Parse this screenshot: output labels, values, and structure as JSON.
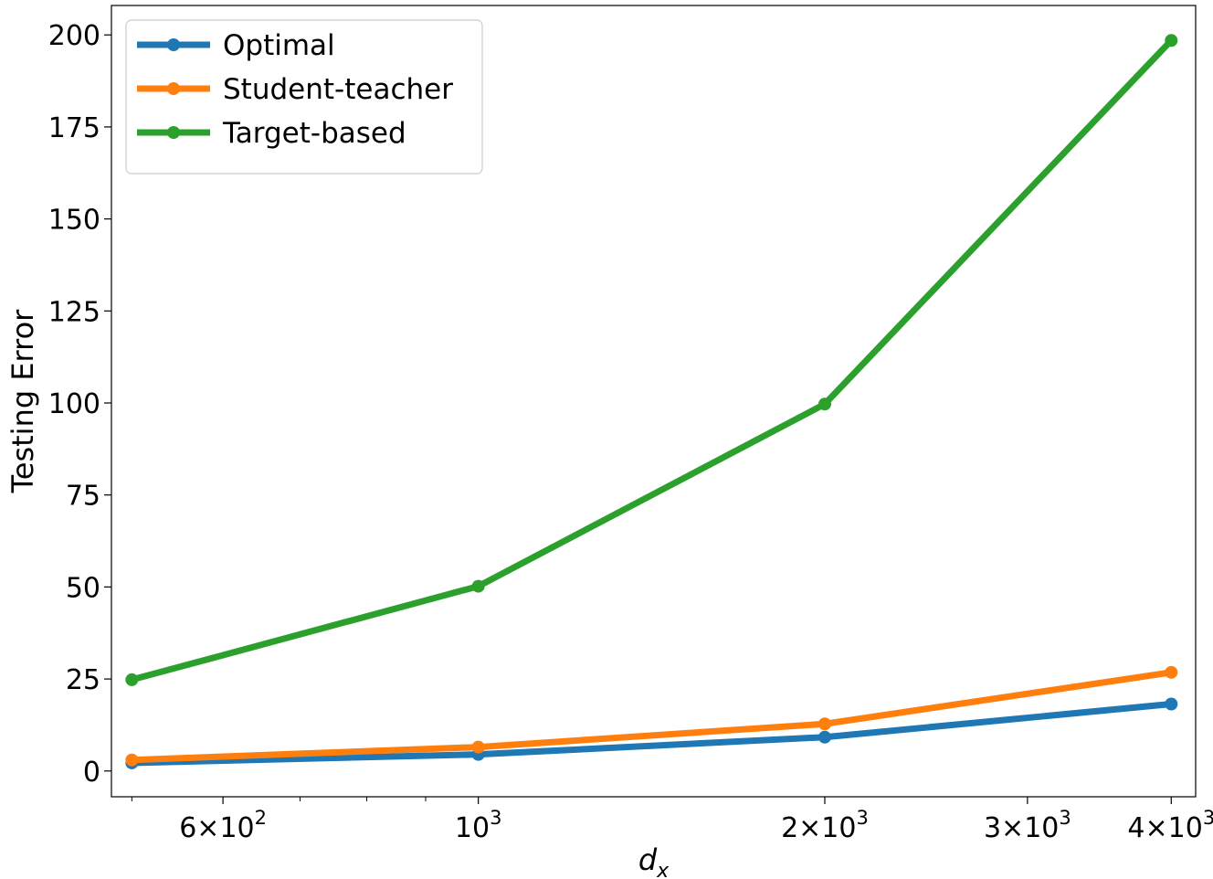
{
  "chart_data": {
    "type": "line",
    "title": "",
    "xlabel_base": "d",
    "xlabel_sub": "x",
    "ylabel": "Testing Error",
    "xscale": "log",
    "xlim": [
      480,
      4200
    ],
    "ylim": [
      -7,
      208
    ],
    "grid": false,
    "legend_position": "top-left",
    "x": [
      500,
      1000,
      2000,
      4000
    ],
    "series": [
      {
        "name": "Optimal",
        "color": "#1f77b4",
        "values": [
          2.2,
          4.5,
          9.2,
          18.2
        ]
      },
      {
        "name": "Student-teacher",
        "color": "#ff7f0e",
        "values": [
          3.0,
          6.5,
          12.8,
          26.8
        ]
      },
      {
        "name": "Target-based",
        "color": "#2ca02c",
        "values": [
          24.8,
          50.2,
          99.7,
          198.5
        ]
      }
    ],
    "yticks": [
      0,
      25,
      50,
      75,
      100,
      125,
      150,
      175,
      200
    ],
    "xticks": [
      {
        "value": 600,
        "mantissa": "6",
        "exp": "2"
      },
      {
        "value": 1000,
        "mantissa": "",
        "exp": "3"
      },
      {
        "value": 2000,
        "mantissa": "2",
        "exp": "3"
      },
      {
        "value": 3000,
        "mantissa": "3",
        "exp": "3"
      },
      {
        "value": 4000,
        "mantissa": "4",
        "exp": "3"
      }
    ],
    "minor_xticks": [
      500,
      700,
      800,
      900
    ]
  }
}
